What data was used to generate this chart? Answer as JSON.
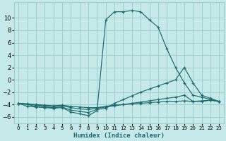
{
  "xlabel": "Humidex (Indice chaleur)",
  "bg_color": "#c5e8e8",
  "grid_color": "#9ecece",
  "line_color": "#1a6b6b",
  "xlim": [
    -0.5,
    23.5
  ],
  "ylim": [
    -7.0,
    12.5
  ],
  "xticks": [
    0,
    1,
    2,
    3,
    4,
    5,
    6,
    7,
    8,
    9,
    10,
    11,
    12,
    13,
    14,
    15,
    16,
    17,
    18,
    19,
    20,
    21,
    22,
    23
  ],
  "yticks": [
    -6,
    -4,
    -2,
    0,
    2,
    4,
    6,
    8,
    10
  ],
  "lines": [
    {
      "x": [
        0,
        1,
        2,
        3,
        4,
        5,
        6,
        7,
        8,
        9,
        10,
        11,
        12,
        13,
        14,
        15,
        16,
        17,
        18,
        19,
        20,
        21,
        22,
        23
      ],
      "y": [
        -3.8,
        -4.3,
        -4.4,
        -4.5,
        -4.6,
        -4.5,
        -5.2,
        -5.5,
        -5.8,
        -5.0,
        9.7,
        11.0,
        11.0,
        11.2,
        11.0,
        9.7,
        8.5,
        5.0,
        2.0,
        -0.5,
        -2.5,
        -2.8,
        -3.2,
        -3.5
      ]
    },
    {
      "x": [
        0,
        1,
        2,
        3,
        4,
        5,
        6,
        7,
        8,
        9,
        10,
        11,
        12,
        13,
        14,
        15,
        16,
        17,
        18,
        19,
        20,
        21,
        22,
        23
      ],
      "y": [
        -3.8,
        -4.0,
        -4.3,
        -4.4,
        -4.5,
        -4.4,
        -4.9,
        -5.1,
        -5.3,
        -4.8,
        -4.6,
        -3.8,
        -3.2,
        -2.6,
        -2.0,
        -1.5,
        -1.0,
        -0.5,
        0.0,
        2.0,
        -0.5,
        -2.5,
        -3.0,
        -3.5
      ]
    },
    {
      "x": [
        0,
        1,
        2,
        3,
        4,
        5,
        6,
        7,
        8,
        9,
        10,
        11,
        12,
        13,
        14,
        15,
        16,
        17,
        18,
        19,
        20,
        21,
        22,
        23
      ],
      "y": [
        -3.8,
        -3.9,
        -4.1,
        -4.2,
        -4.3,
        -4.2,
        -4.5,
        -4.7,
        -4.8,
        -4.6,
        -4.4,
        -4.2,
        -4.0,
        -3.8,
        -3.6,
        -3.4,
        -3.2,
        -3.0,
        -2.8,
        -2.5,
        -3.5,
        -3.5,
        -3.3,
        -3.5
      ]
    },
    {
      "x": [
        0,
        1,
        2,
        3,
        4,
        5,
        6,
        7,
        8,
        9,
        10,
        11,
        12,
        13,
        14,
        15,
        16,
        17,
        18,
        19,
        20,
        21,
        22,
        23
      ],
      "y": [
        -3.8,
        -3.9,
        -4.0,
        -4.1,
        -4.2,
        -4.1,
        -4.3,
        -4.4,
        -4.5,
        -4.5,
        -4.3,
        -4.1,
        -4.0,
        -3.9,
        -3.8,
        -3.7,
        -3.6,
        -3.5,
        -3.5,
        -3.4,
        -3.5,
        -3.4,
        -3.3,
        -3.5
      ]
    }
  ]
}
